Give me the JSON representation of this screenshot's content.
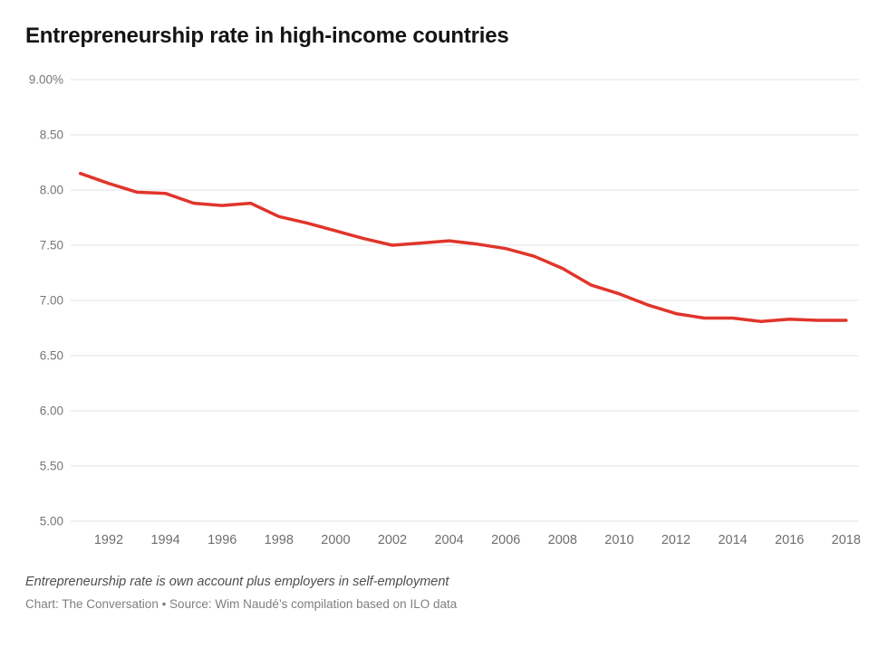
{
  "header": {
    "title": "Entrepreneurship rate in high-income countries"
  },
  "footer": {
    "note": "Entrepreneurship rate is own account plus employers in self-employment",
    "credit": "Chart: The Conversation • Source: Wim Naudé’s compilation based on ILO data"
  },
  "colors": {
    "line": "#e0352b",
    "grid": "#e3e3e3",
    "tick_text": "#767676",
    "title_text": "#141414"
  },
  "chart_data": {
    "type": "line",
    "title": "Entrepreneurship rate in high-income countries",
    "xlabel": "",
    "ylabel": "",
    "ylim": [
      5.0,
      9.0
    ],
    "y_tick_step": 0.5,
    "grid": "horizontal",
    "legend_position": "none",
    "y_tick_labels": [
      "9.00%",
      "8.50",
      "8.00",
      "7.50",
      "7.00",
      "6.50",
      "6.00",
      "5.50",
      "5.00"
    ],
    "x_ticks": [
      1992,
      1994,
      1996,
      1998,
      2000,
      2002,
      2004,
      2006,
      2008,
      2010,
      2012,
      2014,
      2016,
      2018
    ],
    "x_tick_labels": [
      "1992",
      "1994",
      "1996",
      "1998",
      "2000",
      "2002",
      "2004",
      "2006",
      "2008",
      "2010",
      "2012",
      "2014",
      "2016",
      "2018"
    ],
    "series": [
      {
        "name": "Entrepreneurship rate (%)",
        "color": "#e0352b",
        "x": [
          1991,
          1992,
          1993,
          1994,
          1995,
          1996,
          1997,
          1998,
          1999,
          2000,
          2001,
          2002,
          2003,
          2004,
          2005,
          2006,
          2007,
          2008,
          2009,
          2010,
          2011,
          2012,
          2013,
          2014,
          2015,
          2016,
          2017,
          2018
        ],
        "values": [
          8.15,
          8.06,
          7.98,
          7.97,
          7.88,
          7.86,
          7.88,
          7.76,
          7.7,
          7.63,
          7.56,
          7.5,
          7.52,
          7.54,
          7.51,
          7.47,
          7.4,
          7.29,
          7.14,
          7.06,
          6.96,
          6.88,
          6.84,
          6.84,
          6.81,
          6.83,
          6.82,
          6.82
        ]
      }
    ]
  }
}
